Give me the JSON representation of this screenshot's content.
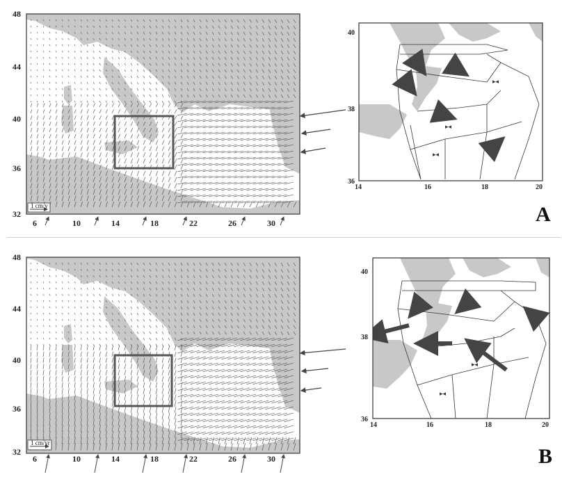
{
  "panels": [
    {
      "id": "A",
      "letter": "A",
      "scale_label": "1 cm/y",
      "main_map": {
        "lat_ticks": [
          "48",
          "44",
          "40",
          "36",
          "32"
        ],
        "lon_ticks": [
          "6",
          "10",
          "14",
          "18",
          "22",
          "26",
          "30"
        ]
      },
      "inset_map": {
        "lat_ticks": [
          "40",
          "38",
          "36"
        ],
        "lon_ticks": [
          "14",
          "16",
          "18",
          "20"
        ]
      },
      "colors": {
        "land": "#c8c8c8",
        "sea": "#ffffff",
        "arrow": "#555555",
        "box": "#555555"
      }
    },
    {
      "id": "B",
      "letter": "B",
      "scale_label": "1 cm/yr",
      "main_map": {
        "lat_ticks": [
          "48",
          "44",
          "40",
          "36",
          "32"
        ],
        "lon_ticks": [
          "6",
          "10",
          "14",
          "18",
          "22",
          "26",
          "30"
        ]
      },
      "inset_map": {
        "lat_ticks": [
          "40",
          "38",
          "36"
        ],
        "lon_ticks": [
          "14",
          "16",
          "18",
          "20"
        ]
      },
      "colors": {
        "land": "#c8c8c8",
        "sea": "#ffffff",
        "arrow": "#555555",
        "box": "#555555"
      }
    }
  ]
}
